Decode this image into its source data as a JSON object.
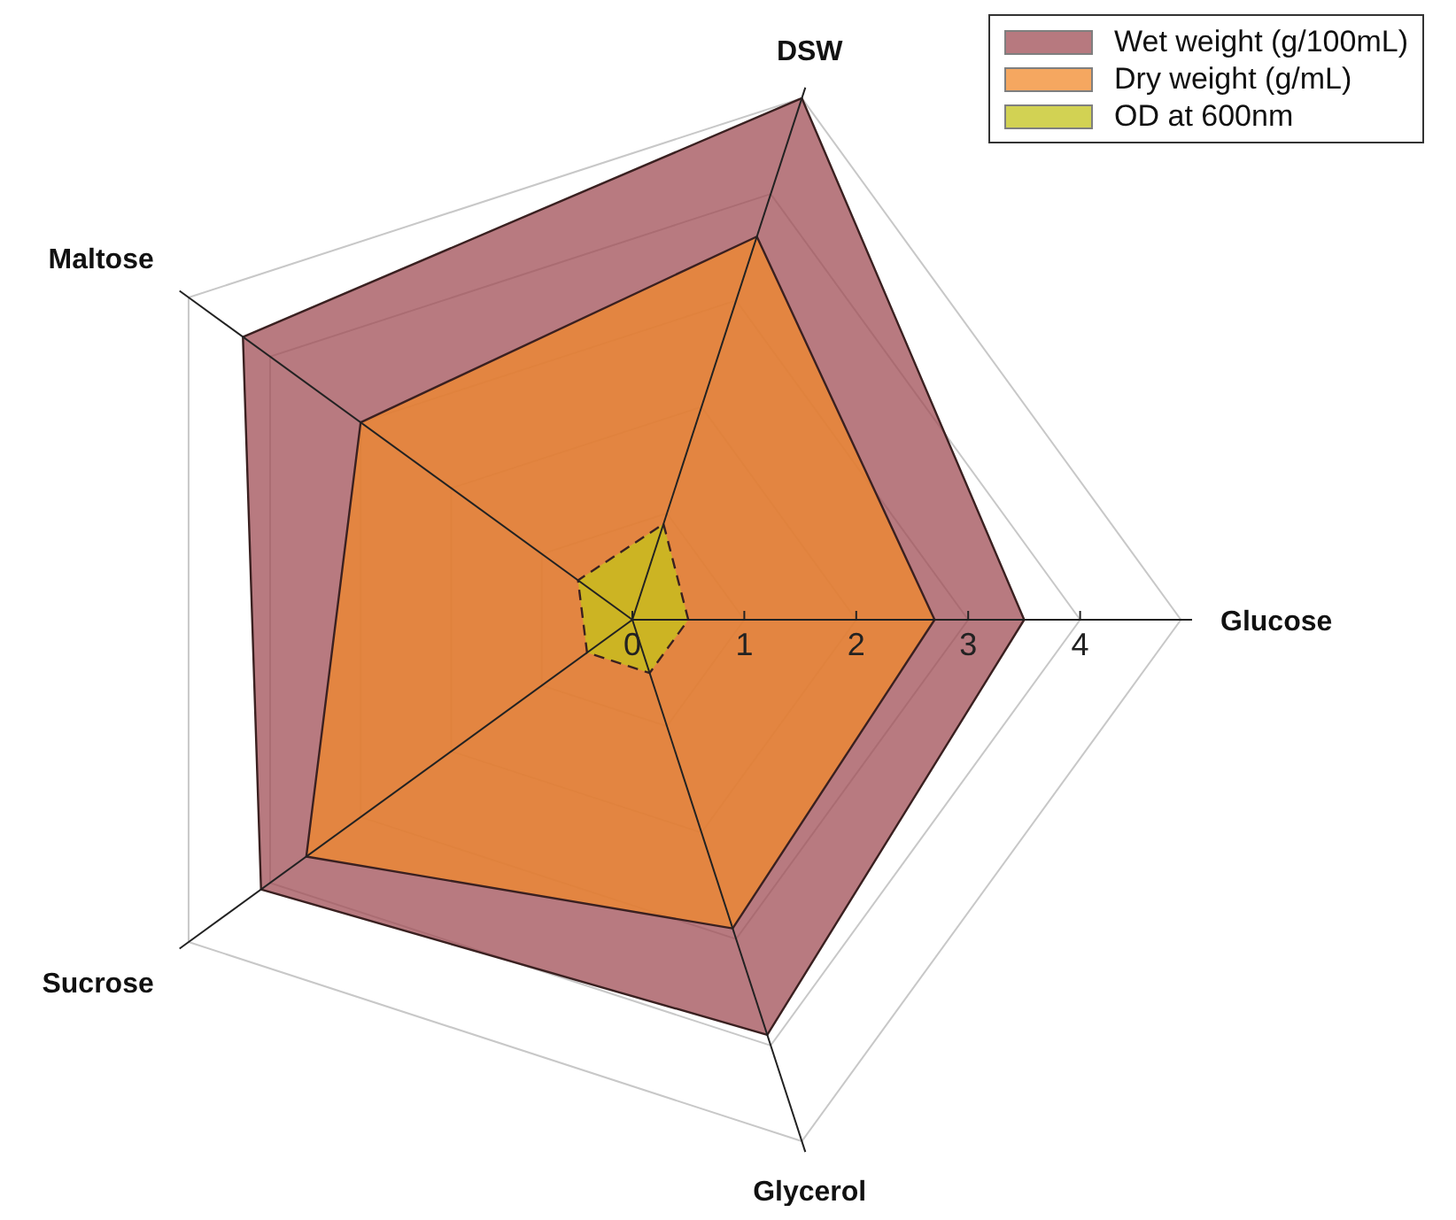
{
  "chart_data": {
    "type": "radar",
    "categories": [
      "DSW",
      "Glucose",
      "Glycerol",
      "Sucrose",
      "Maltose"
    ],
    "series": [
      {
        "name": "Wet weight (g/100mL)",
        "color": "#a04d55",
        "values": [
          4.9,
          3.5,
          3.9,
          4.1,
          4.3
        ],
        "line_style": "solid"
      },
      {
        "name": "Dry weight (g/mL)",
        "color": "#f28a2c",
        "values": [
          3.6,
          2.7,
          2.9,
          3.6,
          3.0
        ],
        "line_style": "solid"
      },
      {
        "name": "OD at 600nm",
        "color": "#c4c41a",
        "values": [
          0.9,
          0.5,
          0.5,
          0.5,
          0.6
        ],
        "line_style": "dashed"
      }
    ],
    "ylim": [
      0,
      4.9
    ],
    "yticks": [
      0,
      1,
      2,
      3,
      4
    ],
    "grid": true,
    "legend": "top right"
  }
}
